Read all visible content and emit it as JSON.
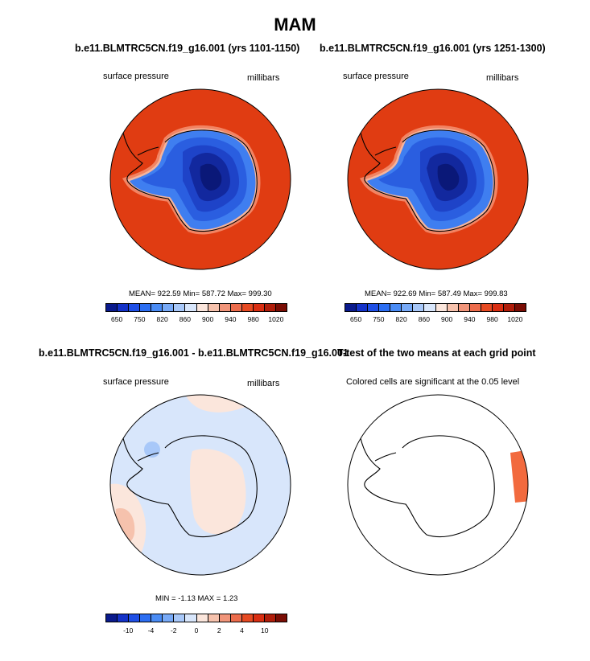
{
  "figure": {
    "title": "MAM",
    "colors": {
      "red": "#e03c12",
      "coast": "#000000"
    }
  },
  "panels": {
    "p1": {
      "title": "b.e11.BLMTRC5CN.f19_g16.001 (yrs 1101-1150)",
      "left_label": "surface pressure",
      "right_label": "millibars",
      "stats": "MEAN= 922.59  Min= 587.72  Max= 999.30"
    },
    "p2": {
      "title": "b.e11.BLMTRC5CN.f19_g16.001 (yrs 1251-1300)",
      "left_label": "surface pressure",
      "right_label": "millibars",
      "stats": "MEAN= 922.69  Min= 587.49  Max= 999.83"
    },
    "p3": {
      "title": "b.e11.BLMTRC5CN.f19_g16.001 - b.e11.BLMTRC5CN.f19_g16.001",
      "left_label": "surface pressure",
      "right_label": "millibars",
      "stats": "MIN =  -1.13 MAX =  1.23"
    },
    "p4": {
      "title": "T-test of the two means at each grid point",
      "left_label": "Colored cells are significant at the 0.05 level"
    }
  },
  "colorbars": {
    "abs": {
      "colors": [
        "#0a1a8c",
        "#1432c8",
        "#1f4fe6",
        "#2c6ef2",
        "#4a8cf5",
        "#78aaf7",
        "#a8c8f9",
        "#d8e6fb",
        "#fbe6dc",
        "#f6c2ad",
        "#f1957a",
        "#ec6c4c",
        "#e64a22",
        "#d92e12",
        "#b01d0a",
        "#7a0d04"
      ],
      "labels": [
        "650",
        "750",
        "820",
        "860",
        "900",
        "940",
        "980",
        "1020"
      ]
    },
    "diff": {
      "colors": [
        "#0a1a8c",
        "#1432c8",
        "#1f4fe6",
        "#2c6ef2",
        "#4a8cf5",
        "#78aaf7",
        "#a8c8f9",
        "#d8e6fb",
        "#fbe6dc",
        "#f6c2ad",
        "#f1957a",
        "#ec6c4c",
        "#e64a22",
        "#d92e12",
        "#b01d0a",
        "#7a0d04"
      ],
      "labels": [
        "-10",
        "-4",
        "-2",
        "0",
        "2",
        "4",
        "10"
      ]
    }
  }
}
